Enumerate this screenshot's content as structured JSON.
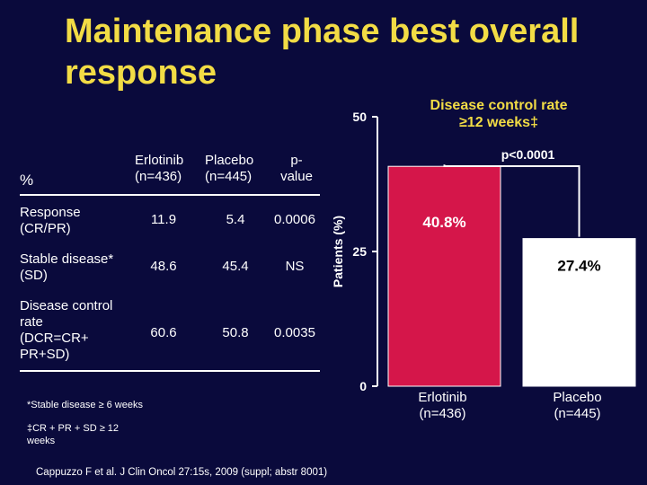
{
  "title": "Maintenance phase best overall response",
  "table": {
    "unit": "%",
    "headers": {
      "erlotinib_line1": "Erlotinib",
      "erlotinib_line2": "(n=436)",
      "placebo_line1": "Placebo",
      "placebo_line2": "(n=445)",
      "p_line1": "p-",
      "p_line2": "value"
    },
    "rows": [
      {
        "label": [
          "Response",
          "(CR/PR)"
        ],
        "erlotinib": "11.9",
        "placebo": "5.4",
        "p": "0.0006"
      },
      {
        "label": [
          "Stable disease*",
          "(SD)"
        ],
        "erlotinib": "48.6",
        "placebo": "45.4",
        "p": "NS"
      },
      {
        "label": [
          "Disease control",
          "rate",
          "(DCR=CR+",
          "PR+SD)"
        ],
        "erlotinib": "60.6",
        "placebo": "50.8",
        "p": "0.0035"
      }
    ]
  },
  "footnotes": {
    "stable": "*Stable disease ≥ 6 weeks",
    "dcr_line1": "‡CR + PR + SD ≥ 12",
    "dcr_line2": "weeks"
  },
  "citation": "Cappuzzo F et al. J Clin Oncol 27:15s, 2009 (suppl; abstr 8001)",
  "chart_data": {
    "type": "bar",
    "title_line1": "Disease control rate",
    "title_line2": "≥12 weeks‡",
    "ylabel": "Patients (%)",
    "ylim": [
      0,
      50
    ],
    "yticks": [
      "0",
      "25",
      "50"
    ],
    "categories": [
      [
        "Erlotinib",
        "(n=436)"
      ],
      [
        "Placebo",
        "(n=445)"
      ]
    ],
    "values": [
      40.8,
      27.4
    ],
    "value_labels": [
      "40.8%",
      "27.4%"
    ],
    "colors": [
      "#d5164a",
      "#ffffff"
    ],
    "label_colors": [
      "#ffffff",
      "#000000"
    ],
    "annotation": "p<0.0001"
  },
  "colors": {
    "background": "#0a0a3c",
    "title": "#f2dc45",
    "text": "#ffffff"
  }
}
